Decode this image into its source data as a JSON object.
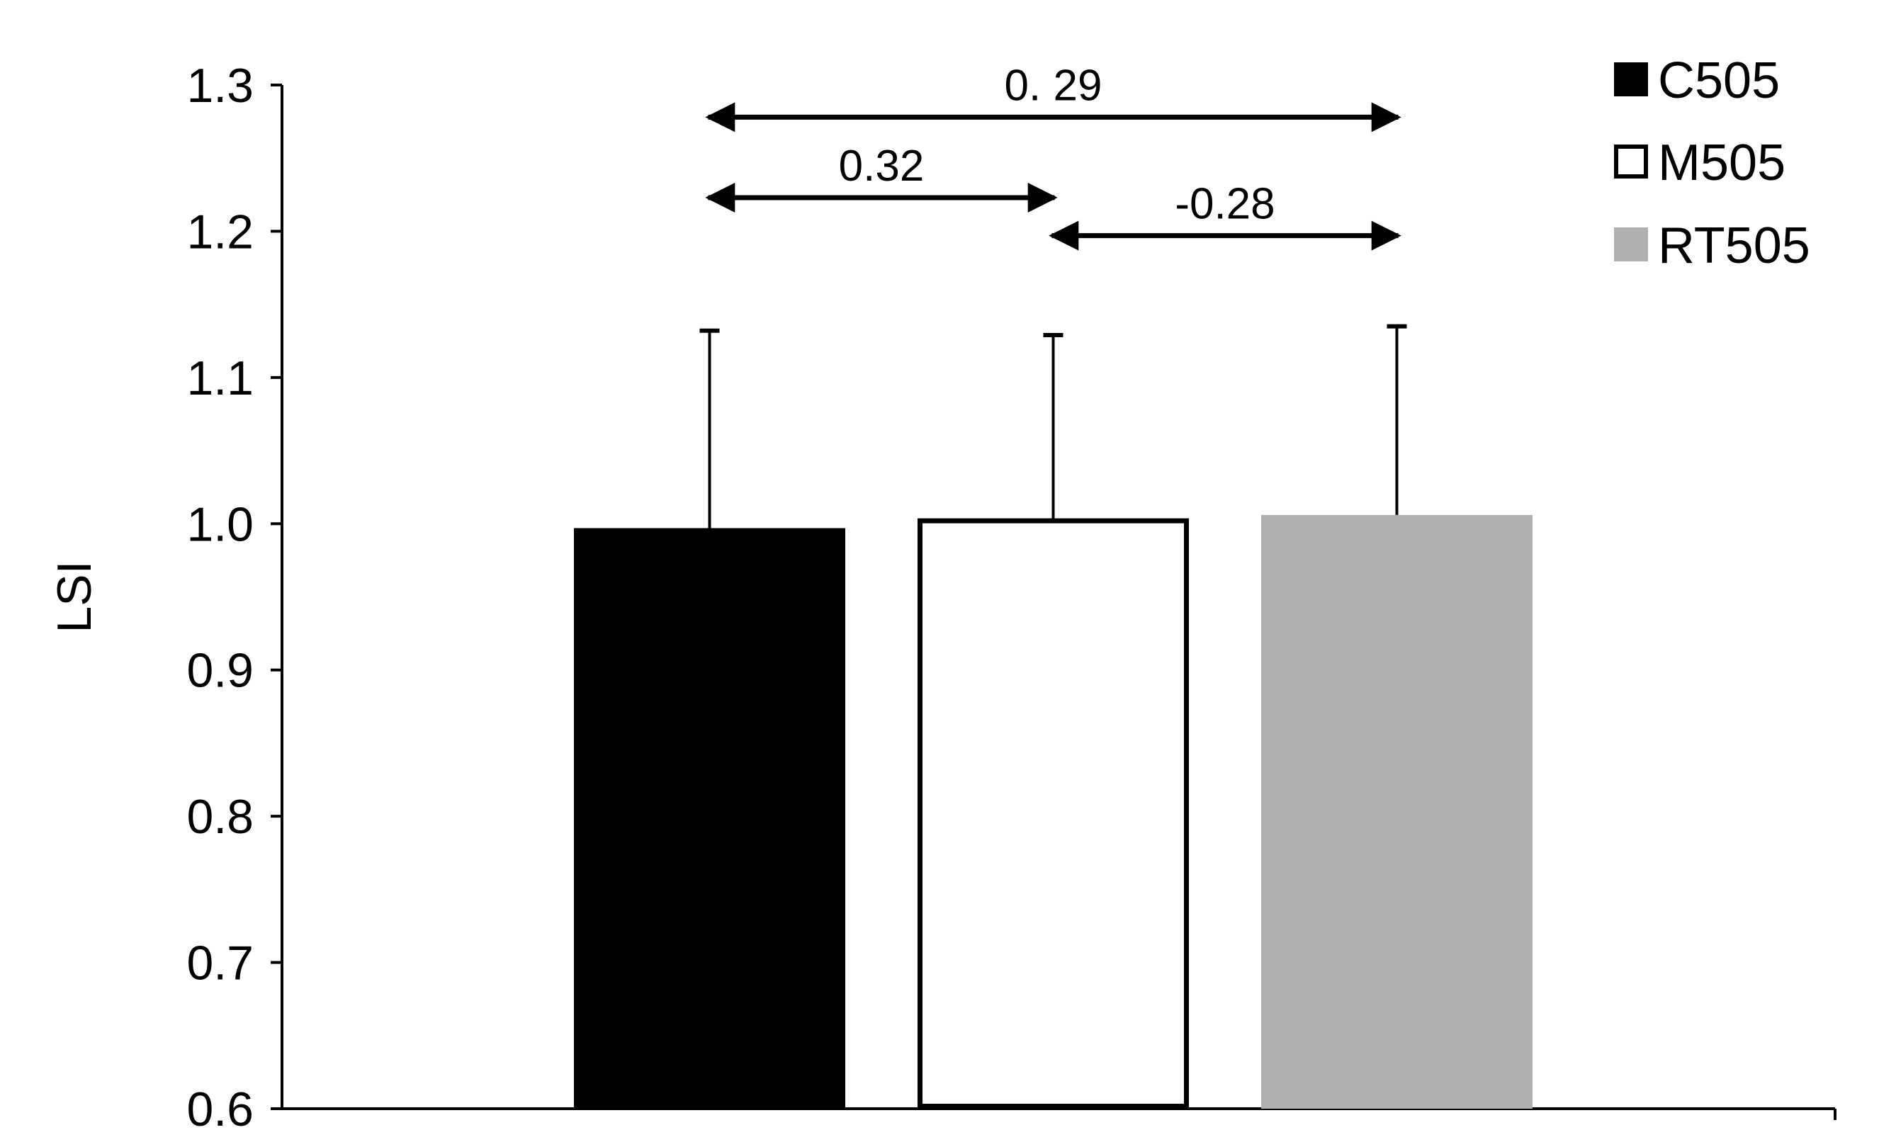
{
  "chart_data": {
    "type": "bar",
    "title": "",
    "xlabel": "",
    "ylabel": "LSI",
    "ylim": [
      0.6,
      1.3
    ],
    "yticks": [
      "0.6",
      "0.7",
      "0.8",
      "0.9",
      "1.0",
      "1.1",
      "1.2",
      "1.3"
    ],
    "grid": false,
    "legend_position": "top-right",
    "categories": [
      "C505",
      "M505",
      "RT505"
    ],
    "series": [
      {
        "name": "C505",
        "value": 0.997,
        "error_upper": 1.132,
        "color": "#000000",
        "stroke": "#000000"
      },
      {
        "name": "M505",
        "value": 1.002,
        "error_upper": 1.129,
        "color": "#ffffff",
        "stroke": "#000000"
      },
      {
        "name": "RT505",
        "value": 1.006,
        "error_upper": 1.135,
        "color": "#b0b0b0",
        "stroke": "#b0b0b0"
      }
    ],
    "annotations": [
      {
        "from": "C505",
        "to": "RT505",
        "label": "0. 29",
        "y": 1.278
      },
      {
        "from": "C505",
        "to": "M505",
        "label": "0.32",
        "y": 1.223
      },
      {
        "from": "M505",
        "to": "RT505",
        "label": "-0.28",
        "y": 1.197
      }
    ]
  }
}
